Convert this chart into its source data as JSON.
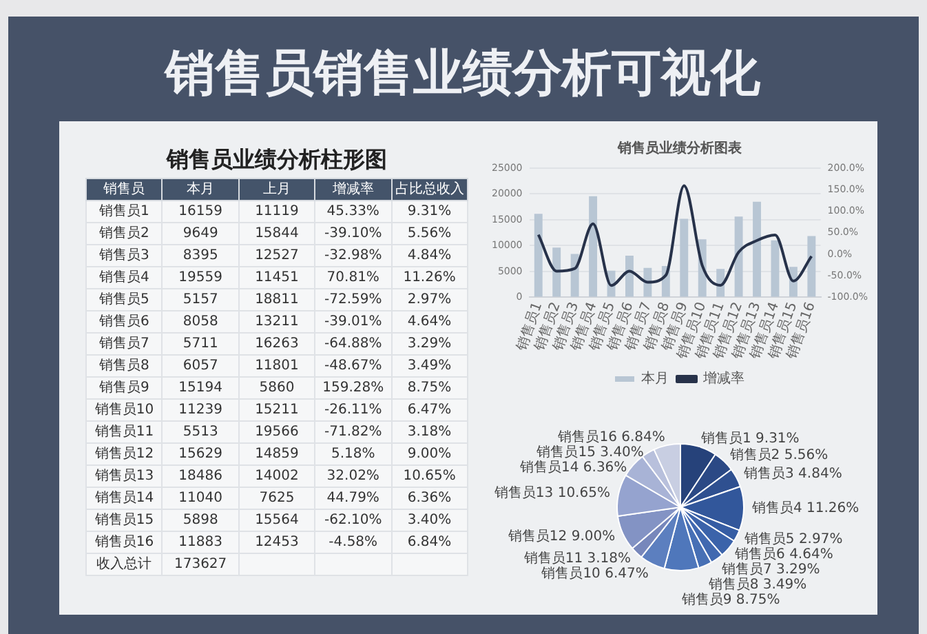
{
  "chart_data": [
    {
      "type": "other",
      "title": "销售员销售业绩分析可视化",
      "subtitle": "销售员业绩分析柱形图",
      "xlabel": "销售员",
      "categories": [
        "销售员1",
        "销售员2",
        "销售员3",
        "销售员4",
        "销售员5",
        "销售员6",
        "销售员7",
        "销售员8",
        "销售员9",
        "销售员10",
        "销售员11",
        "销售员12",
        "销售员13",
        "销售员14",
        "销售员15",
        "销售员16",
        "收入总计"
      ],
      "series": [
        {
          "name": "本月",
          "values": [
            16159,
            9649,
            8395,
            19559,
            5157,
            8058,
            5711,
            6057,
            15194,
            11239,
            5513,
            15629,
            18486,
            11040,
            5898,
            11883,
            173627
          ]
        },
        {
          "name": "上月",
          "values": [
            11119,
            15844,
            12527,
            11451,
            18811,
            13211,
            16263,
            11801,
            5860,
            15211,
            19566,
            14859,
            14002,
            7625,
            15564,
            12453,
            null
          ]
        },
        {
          "name": "增减率",
          "values": [
            45.33,
            -39.1,
            -32.98,
            70.81,
            -72.59,
            -39.01,
            -64.88,
            -48.67,
            159.28,
            -26.11,
            -71.82,
            5.18,
            32.02,
            44.79,
            -62.1,
            -4.58,
            null
          ],
          "value_labels": [
            "45.33%",
            "-39.10%",
            "-32.98%",
            "70.81%",
            "-72.59%",
            "-39.01%",
            "-64.88%",
            "-48.67%",
            "159.28%",
            "-26.11%",
            "-71.82%",
            "5.18%",
            "32.02%",
            "44.79%",
            "-62.10%",
            "-4.58%",
            null
          ]
        },
        {
          "name": "占比总收入",
          "values": [
            9.31,
            5.56,
            4.84,
            11.26,
            2.97,
            4.64,
            3.29,
            3.49,
            8.75,
            6.47,
            3.18,
            9.0,
            10.65,
            6.36,
            3.4,
            6.84,
            null
          ],
          "value_labels": [
            "9.31%",
            "5.56%",
            "4.84%",
            "11.26%",
            "2.97%",
            "4.64%",
            "3.29%",
            "3.49%",
            "8.75%",
            "6.47%",
            "3.18%",
            "9.00%",
            "10.65%",
            "6.36%",
            "3.40%",
            "6.84%",
            null
          ]
        }
      ],
      "data_labels": true
    },
    {
      "type": "bar",
      "title": "销售员业绩分析图表",
      "categories": [
        "销售员1",
        "销售员2",
        "销售员3",
        "销售员4",
        "销售员5",
        "销售员6",
        "销售员7",
        "销售员8",
        "销售员9",
        "销售员10",
        "销售员11",
        "销售员12",
        "销售员13",
        "销售员14",
        "销售员15",
        "销售员16"
      ],
      "series": [
        {
          "name": "本月",
          "type": "bar",
          "color": "#b8c6d4",
          "values": [
            16159,
            9649,
            8395,
            19559,
            5157,
            8058,
            5711,
            6057,
            15194,
            11239,
            5513,
            15629,
            18486,
            11040,
            5898,
            11883
          ]
        },
        {
          "name": "增减率",
          "type": "line",
          "axis": "y2",
          "color": "#27324a",
          "values": [
            45.33,
            -39.1,
            -32.98,
            70.81,
            -72.59,
            -39.01,
            -64.88,
            -48.67,
            159.28,
            -26.11,
            -71.82,
            5.18,
            32.02,
            44.79,
            -62.1,
            -4.58
          ]
        }
      ],
      "ylim": [
        0,
        25000
      ],
      "yticks": [
        0,
        5000,
        10000,
        15000,
        20000,
        25000
      ],
      "y2lim": [
        -100,
        200
      ],
      "y2ticks": [
        {
          "value": -100,
          "label": "-100.0%"
        },
        {
          "value": -50,
          "label": "-50.0%"
        },
        {
          "value": 0,
          "label": "0.0%"
        },
        {
          "value": 50,
          "label": "50.0%"
        },
        {
          "value": 100,
          "label": "100.0%"
        },
        {
          "value": 150,
          "label": "150.0%"
        },
        {
          "value": 200,
          "label": "200.0%"
        }
      ],
      "grid": "y",
      "legend": "bottom",
      "marker": "none"
    },
    {
      "type": "pie",
      "categories": [
        "销售员1",
        "销售员2",
        "销售员3",
        "销售员4",
        "销售员5",
        "销售员6",
        "销售员7",
        "销售员8",
        "销售员9",
        "销售员10",
        "销售员11",
        "销售员12",
        "销售员13",
        "销售员14",
        "销售员15",
        "销售员16"
      ],
      "values": [
        9.31,
        5.56,
        4.84,
        11.26,
        2.97,
        4.64,
        3.29,
        3.49,
        8.75,
        6.47,
        3.18,
        9.0,
        10.65,
        6.36,
        3.4,
        6.84
      ],
      "value_labels": [
        "9.31%",
        "5.56%",
        "4.84%",
        "11.26%",
        "2.97%",
        "4.64%",
        "3.29%",
        "3.49%",
        "8.75%",
        "6.47%",
        "3.18%",
        "9.00%",
        "10.65%",
        "6.36%",
        "3.40%",
        "6.84%"
      ],
      "colors": [
        "#26427a",
        "#2b4985",
        "#2f5090",
        "#32579b",
        "#365da4",
        "#3b63aa",
        "#4169b0",
        "#4770b5",
        "#4f77bb",
        "#5c7fbf",
        "#7787bb",
        "#8393c4",
        "#95a3cf",
        "#a8b3d6",
        "#b8c0dc",
        "#c8cee2"
      ]
    }
  ]
}
